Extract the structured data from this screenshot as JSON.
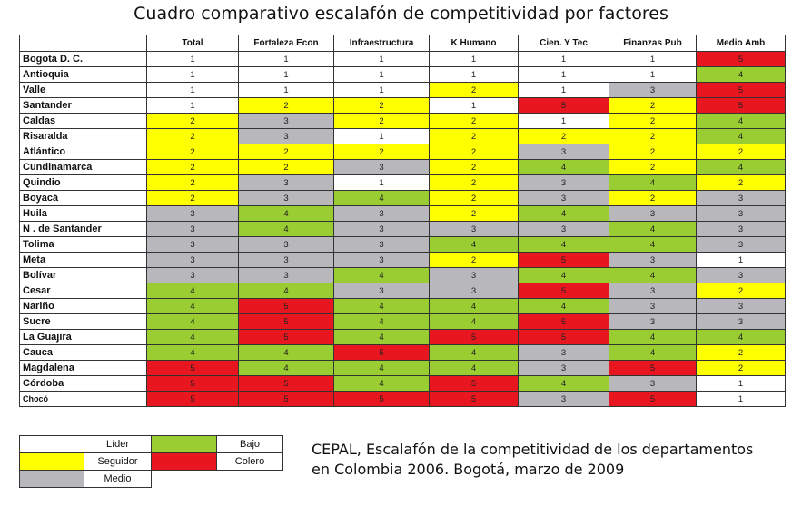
{
  "title": "Cuadro comparativo escalafón de competitividad por factores",
  "chart_data": {
    "type": "table",
    "columns": [
      "Total",
      "Fortaleza Econ",
      "Infraestructura",
      "K Humano",
      "Cien. Y Tec",
      "Finanzas Pub",
      "Medio Amb"
    ],
    "rows": [
      {
        "name": "Bogotá D. C.",
        "values": [
          1,
          1,
          1,
          1,
          1,
          1,
          5
        ]
      },
      {
        "name": "Antioquia",
        "values": [
          1,
          1,
          1,
          1,
          1,
          1,
          4
        ]
      },
      {
        "name": "Valle",
        "values": [
          1,
          1,
          1,
          2,
          1,
          3,
          5
        ]
      },
      {
        "name": "Santander",
        "values": [
          1,
          2,
          2,
          1,
          5,
          2,
          5
        ]
      },
      {
        "name": "Caldas",
        "values": [
          2,
          3,
          2,
          2,
          1,
          2,
          4
        ]
      },
      {
        "name": "Risaralda",
        "values": [
          2,
          3,
          1,
          2,
          2,
          2,
          4
        ]
      },
      {
        "name": "Atlántico",
        "values": [
          2,
          2,
          2,
          2,
          3,
          2,
          2
        ]
      },
      {
        "name": "Cundinamarca",
        "values": [
          2,
          2,
          3,
          2,
          4,
          2,
          4
        ]
      },
      {
        "name": "Quindio",
        "values": [
          2,
          3,
          1,
          2,
          3,
          4,
          2
        ]
      },
      {
        "name": "Boyacá",
        "values": [
          2,
          3,
          4,
          2,
          3,
          2,
          3
        ]
      },
      {
        "name": "Huila",
        "values": [
          3,
          4,
          3,
          2,
          4,
          3,
          3
        ]
      },
      {
        "name": "N . de Santander",
        "values": [
          3,
          4,
          3,
          3,
          3,
          4,
          3
        ]
      },
      {
        "name": "Tolima",
        "values": [
          3,
          3,
          3,
          4,
          4,
          4,
          3
        ]
      },
      {
        "name": "Meta",
        "values": [
          3,
          3,
          3,
          2,
          5,
          3,
          1
        ]
      },
      {
        "name": "Bolívar",
        "values": [
          3,
          3,
          4,
          3,
          4,
          4,
          3
        ]
      },
      {
        "name": "Cesar",
        "values": [
          4,
          4,
          3,
          3,
          5,
          3,
          2
        ]
      },
      {
        "name": "Nariño",
        "values": [
          4,
          5,
          4,
          4,
          4,
          3,
          3
        ]
      },
      {
        "name": "Sucre",
        "values": [
          4,
          5,
          4,
          4,
          5,
          3,
          3
        ]
      },
      {
        "name": "La Guajira",
        "values": [
          4,
          5,
          4,
          5,
          5,
          4,
          4
        ]
      },
      {
        "name": "Cauca",
        "values": [
          4,
          4,
          5,
          4,
          3,
          4,
          2
        ]
      },
      {
        "name": "Magdalena",
        "values": [
          5,
          4,
          4,
          4,
          3,
          5,
          2
        ]
      },
      {
        "name": "Córdoba",
        "values": [
          5,
          5,
          4,
          5,
          4,
          3,
          1
        ]
      },
      {
        "name": "Chocó",
        "values": [
          5,
          5,
          5,
          5,
          3,
          5,
          1
        ]
      }
    ],
    "level_colors": {
      "1": "#ffffff",
      "2": "#ffff00",
      "3": "#b8b8bc",
      "4": "#9acd32",
      "5": "#e8171f"
    }
  },
  "legend": {
    "lider": "Líder",
    "seguidor": "Seguidor",
    "medio": "Medio",
    "bajo": "Bajo",
    "colero": "Colero"
  },
  "source": {
    "line1": "CEPAL, Escalafón de la competitividad de los departamentos",
    "line2": "en Colombia 2006. Bogotá, marzo de 2009"
  }
}
